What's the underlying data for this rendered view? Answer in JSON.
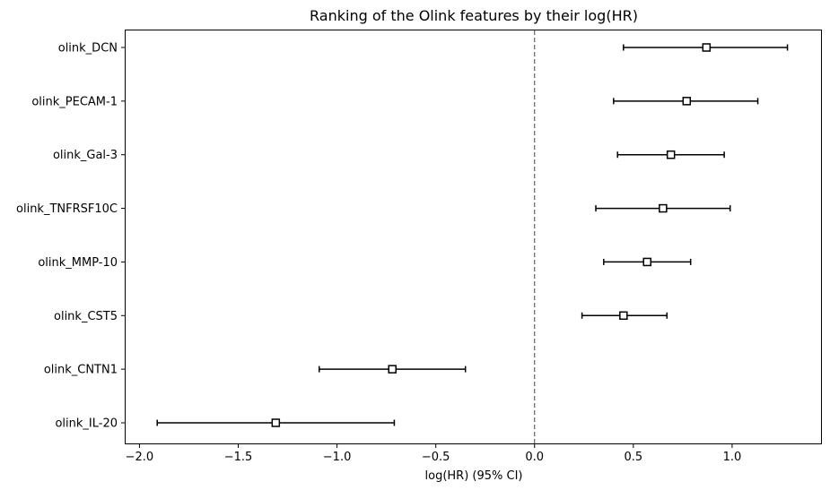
{
  "chart_data": {
    "type": "forest",
    "title": "Ranking of the Olink features by their log(HR)",
    "xlabel": "log(HR) (95% CI)",
    "ylabel": "",
    "xlim": [
      -2.07,
      1.45
    ],
    "xticks": [
      -2.0,
      -1.5,
      -1.0,
      -0.5,
      0.0,
      0.5,
      1.0
    ],
    "xtick_labels": [
      "−2.0",
      "−1.5",
      "−1.0",
      "−0.5",
      "0.0",
      "0.5",
      "1.0"
    ],
    "reference_line": 0.0,
    "grid": false,
    "features": [
      {
        "label": "olink_DCN",
        "log_hr": 0.87,
        "ci_low": 0.45,
        "ci_high": 1.28
      },
      {
        "label": "olink_PECAM-1",
        "log_hr": 0.77,
        "ci_low": 0.4,
        "ci_high": 1.13
      },
      {
        "label": "olink_Gal-3",
        "log_hr": 0.69,
        "ci_low": 0.42,
        "ci_high": 0.96
      },
      {
        "label": "olink_TNFRSF10C",
        "log_hr": 0.65,
        "ci_low": 0.31,
        "ci_high": 0.99
      },
      {
        "label": "olink_MMP-10",
        "log_hr": 0.57,
        "ci_low": 0.35,
        "ci_high": 0.79
      },
      {
        "label": "olink_CST5",
        "log_hr": 0.45,
        "ci_low": 0.24,
        "ci_high": 0.67
      },
      {
        "label": "olink_CNTN1",
        "log_hr": -0.72,
        "ci_low": -1.09,
        "ci_high": -0.35
      },
      {
        "label": "olink_IL-20",
        "log_hr": -1.31,
        "ci_low": -1.91,
        "ci_high": -0.71
      }
    ]
  }
}
